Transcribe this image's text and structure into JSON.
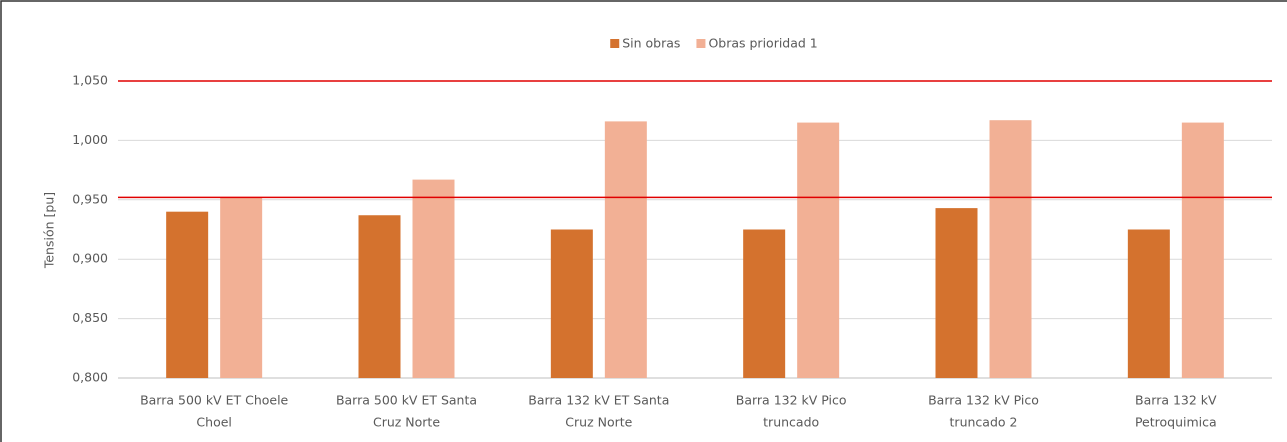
{
  "chart_data": {
    "type": "bar",
    "y_label": "Tensión [pu]",
    "categories": [
      [
        "Barra 500 kV ET Choele",
        "Choel"
      ],
      [
        "Barra 500 kV ET Santa",
        "Cruz Norte"
      ],
      [
        "Barra 132 kV ET Santa",
        "Cruz Norte"
      ],
      [
        "Barra 132 kV Pico",
        "truncado"
      ],
      [
        "Barra 132 kV Pico",
        "truncado 2"
      ],
      [
        "Barra 132 kV",
        "Petroquimica"
      ]
    ],
    "series": [
      {
        "name": "Sin obras",
        "color": "#d4722e",
        "values": [
          0.94,
          0.937,
          0.925,
          0.925,
          0.943,
          0.925
        ]
      },
      {
        "name": "Obras prioridad 1",
        "color": "#f2b095",
        "values": [
          0.952,
          0.967,
          1.016,
          1.015,
          1.017,
          1.015
        ]
      }
    ],
    "ylim": [
      0.8,
      1.05
    ],
    "yticks": [
      {
        "value": 0.8,
        "label": "0,800"
      },
      {
        "value": 0.85,
        "label": "0,850"
      },
      {
        "value": 0.9,
        "label": "0,900"
      },
      {
        "value": 0.95,
        "label": "0,950"
      },
      {
        "value": 1.0,
        "label": "1,000"
      },
      {
        "value": 1.05,
        "label": "1,050"
      }
    ],
    "reference_lines": [
      1.05,
      0.952
    ],
    "reference_color": "#e00000",
    "grid": true,
    "legend": "top"
  }
}
